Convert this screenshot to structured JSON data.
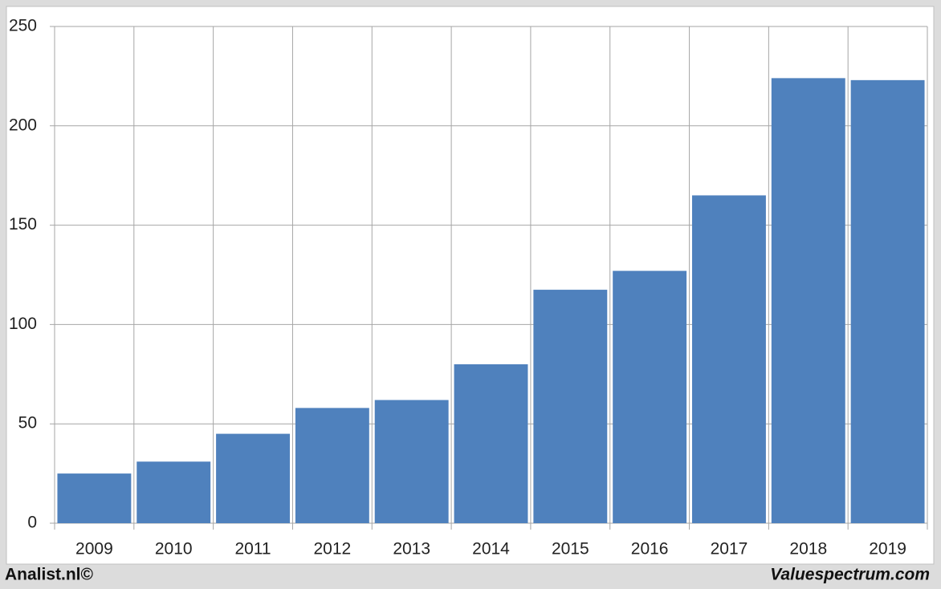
{
  "chart_data": {
    "type": "bar",
    "categories": [
      "2009",
      "2010",
      "2011",
      "2012",
      "2013",
      "2014",
      "2015",
      "2016",
      "2017",
      "2018",
      "2019"
    ],
    "values": [
      25,
      31,
      45,
      58,
      62,
      80,
      117.5,
      127,
      165,
      224,
      223
    ],
    "color": "#4f81bd",
    "ylim": [
      0,
      250
    ],
    "yticks": [
      0,
      50,
      100,
      150,
      200,
      250
    ],
    "grid": true,
    "footer_left": "Analist.nl©",
    "footer_right": "Valuespectrum.com"
  }
}
